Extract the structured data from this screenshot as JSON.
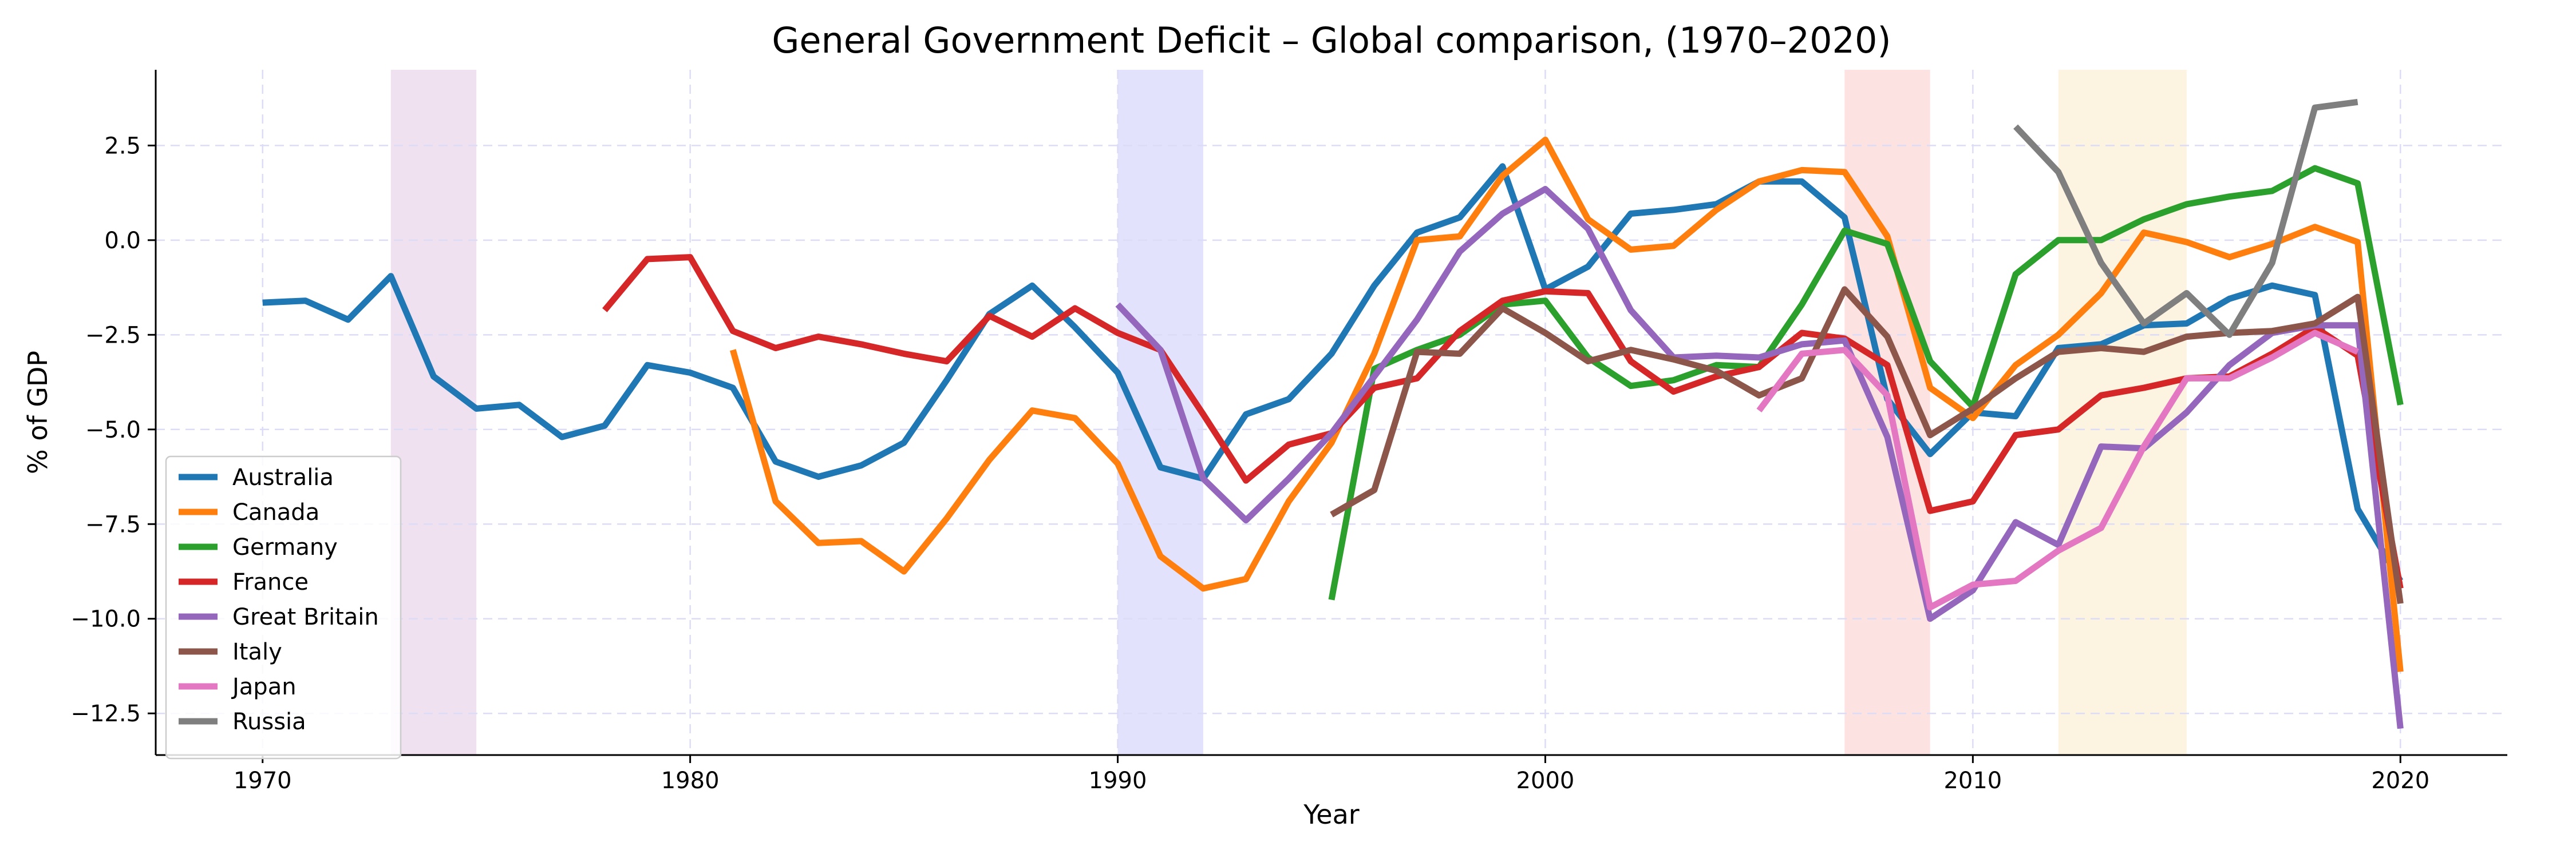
{
  "chart_data": {
    "type": "line",
    "title": "General Government Deficit – Global comparison, (1970–2020)",
    "xlabel": "Year",
    "ylabel": "% of GDP",
    "xlim": [
      1967.5,
      2022.5
    ],
    "ylim": [
      -13.6,
      4.5
    ],
    "xticks": [
      1970,
      1980,
      1990,
      2000,
      2010,
      2020
    ],
    "yticks": [
      2.5,
      0.0,
      -2.5,
      -5.0,
      -7.5,
      -10.0,
      -12.5
    ],
    "ytick_labels": [
      "2.5",
      "0.0",
      "−2.5",
      "−5.0",
      "−7.5",
      "−10.0",
      "−12.5"
    ],
    "grid": true,
    "legend_position": "lower-left",
    "shaded_periods": [
      {
        "start": 1973,
        "end": 1975,
        "color": "#efe1f0"
      },
      {
        "start": 1990,
        "end": 1992,
        "color": "#e2e2fc"
      },
      {
        "start": 2007,
        "end": 2009,
        "color": "#fde2e2"
      },
      {
        "start": 2012,
        "end": 2015,
        "color": "#fdf3e1"
      }
    ],
    "series": [
      {
        "name": "Australia",
        "color": "#1f77b4",
        "x": [
          1970,
          1971,
          1972,
          1973,
          1974,
          1975,
          1976,
          1977,
          1978,
          1979,
          1980,
          1981,
          1982,
          1983,
          1984,
          1985,
          1986,
          1987,
          1988,
          1989,
          1990,
          1991,
          1992,
          1993,
          1994,
          1995,
          1996,
          1997,
          1998,
          1999,
          2000,
          2001,
          2002,
          2003,
          2004,
          2005,
          2006,
          2007,
          2008,
          2009,
          2010,
          2011,
          2012,
          2013,
          2014,
          2015,
          2016,
          2017,
          2018,
          2019,
          2020
        ],
        "y": [
          -1.65,
          -1.6,
          -2.1,
          -0.95,
          -3.6,
          -4.45,
          -4.35,
          -5.2,
          -4.9,
          -3.3,
          -3.5,
          -3.9,
          -5.85,
          -6.25,
          -5.95,
          -5.35,
          -3.7,
          -1.95,
          -1.2,
          -2.3,
          -3.5,
          -6.0,
          -6.3,
          -4.6,
          -4.2,
          -3.0,
          -1.2,
          0.2,
          0.6,
          1.95,
          -1.3,
          -0.7,
          0.7,
          0.8,
          0.95,
          1.55,
          1.55,
          0.6,
          -4.2,
          -5.65,
          -4.55,
          -4.65,
          -2.85,
          -2.75,
          -2.25,
          -2.2,
          -1.55,
          -1.2,
          -1.45,
          -7.1,
          -9.0
        ]
      },
      {
        "name": "Canada",
        "color": "#ff7f0e",
        "x": [
          1981,
          1982,
          1983,
          1984,
          1985,
          1986,
          1987,
          1988,
          1989,
          1990,
          1991,
          1992,
          1993,
          1994,
          1995,
          1996,
          1997,
          1998,
          1999,
          2000,
          2001,
          2002,
          2003,
          2004,
          2005,
          2006,
          2007,
          2008,
          2009,
          2010,
          2011,
          2012,
          2013,
          2014,
          2015,
          2016,
          2017,
          2018,
          2019,
          2020
        ],
        "y": [
          -2.9,
          -6.9,
          -8.0,
          -7.95,
          -8.75,
          -7.35,
          -5.8,
          -4.5,
          -4.7,
          -5.9,
          -8.35,
          -9.2,
          -8.95,
          -6.9,
          -5.35,
          -3.0,
          0.0,
          0.1,
          1.7,
          2.65,
          0.55,
          -0.25,
          -0.15,
          0.8,
          1.55,
          1.85,
          1.8,
          0.1,
          -3.9,
          -4.7,
          -3.3,
          -2.5,
          -1.4,
          0.2,
          -0.05,
          -0.45,
          -0.1,
          0.35,
          -0.05,
          -11.4
        ]
      },
      {
        "name": "Germany",
        "color": "#2ca02c",
        "x": [
          1995,
          1996,
          1997,
          1998,
          1999,
          2000,
          2001,
          2002,
          2003,
          2004,
          2005,
          2006,
          2007,
          2008,
          2009,
          2010,
          2011,
          2012,
          2013,
          2014,
          2015,
          2016,
          2017,
          2018,
          2019,
          2020
        ],
        "y": [
          -9.5,
          -3.4,
          -2.9,
          -2.5,
          -1.7,
          -1.6,
          -3.1,
          -3.85,
          -3.7,
          -3.3,
          -3.35,
          -1.7,
          0.25,
          -0.1,
          -3.2,
          -4.4,
          -0.9,
          0.0,
          0.0,
          0.55,
          0.95,
          1.15,
          1.3,
          1.9,
          1.5,
          -4.35
        ]
      },
      {
        "name": "France",
        "color": "#d62728",
        "x": [
          1978,
          1979,
          1980,
          1981,
          1982,
          1983,
          1984,
          1985,
          1986,
          1987,
          1988,
          1989,
          1990,
          1991,
          1992,
          1993,
          1994,
          1995,
          1996,
          1997,
          1998,
          1999,
          2000,
          2001,
          2002,
          2003,
          2004,
          2005,
          2006,
          2007,
          2008,
          2009,
          2010,
          2011,
          2012,
          2013,
          2014,
          2015,
          2016,
          2017,
          2018,
          2019,
          2020
        ],
        "y": [
          -1.85,
          -0.5,
          -0.45,
          -2.4,
          -2.85,
          -2.55,
          -2.75,
          -3.0,
          -3.2,
          -2.0,
          -2.55,
          -1.8,
          -2.45,
          -2.9,
          -4.6,
          -6.35,
          -5.4,
          -5.1,
          -3.9,
          -3.65,
          -2.4,
          -1.6,
          -1.35,
          -1.4,
          -3.2,
          -4.0,
          -3.6,
          -3.35,
          -2.45,
          -2.6,
          -3.3,
          -7.15,
          -6.9,
          -5.15,
          -5.0,
          -4.1,
          -3.9,
          -3.65,
          -3.6,
          -3.0,
          -2.3,
          -3.05,
          -9.2
        ]
      },
      {
        "name": "Great Britain",
        "color": "#9467bd",
        "x": [
          1990,
          1991,
          1992,
          1993,
          1994,
          1995,
          1996,
          1997,
          1998,
          1999,
          2000,
          2001,
          2002,
          2003,
          2004,
          2005,
          2006,
          2007,
          2008,
          2009,
          2010,
          2011,
          2012,
          2013,
          2014,
          2015,
          2016,
          2017,
          2018,
          2019,
          2020
        ],
        "y": [
          -1.7,
          -2.9,
          -6.3,
          -7.4,
          -6.3,
          -5.1,
          -3.6,
          -2.1,
          -0.3,
          0.7,
          1.35,
          0.3,
          -1.85,
          -3.1,
          -3.05,
          -3.1,
          -2.75,
          -2.65,
          -5.2,
          -10.0,
          -9.25,
          -7.45,
          -8.05,
          -5.45,
          -5.5,
          -4.55,
          -3.3,
          -2.45,
          -2.25,
          -2.25,
          -12.9
        ]
      },
      {
        "name": "Italy",
        "color": "#8c564b",
        "x": [
          1995,
          1996,
          1997,
          1998,
          1999,
          2000,
          2001,
          2002,
          2003,
          2004,
          2005,
          2006,
          2007,
          2008,
          2009,
          2010,
          2011,
          2012,
          2013,
          2014,
          2015,
          2016,
          2017,
          2018,
          2019,
          2020
        ],
        "y": [
          -7.25,
          -6.6,
          -2.95,
          -3.0,
          -1.8,
          -2.45,
          -3.2,
          -2.9,
          -3.15,
          -3.45,
          -4.1,
          -3.65,
          -1.3,
          -2.55,
          -5.15,
          -4.45,
          -3.65,
          -2.95,
          -2.85,
          -2.95,
          -2.55,
          -2.45,
          -2.4,
          -2.2,
          -1.5,
          -9.6
        ]
      },
      {
        "name": "Japan",
        "color": "#e377c2",
        "x": [
          2005,
          2006,
          2007,
          2008,
          2009,
          2010,
          2011,
          2012,
          2013,
          2014,
          2015,
          2016,
          2017,
          2018,
          2019
        ],
        "y": [
          -4.5,
          -3.0,
          -2.9,
          -4.1,
          -9.7,
          -9.1,
          -9.0,
          -8.2,
          -7.6,
          -5.45,
          -3.65,
          -3.65,
          -3.1,
          -2.45,
          -2.95
        ]
      },
      {
        "name": "Russia",
        "color": "#7f7f7f",
        "x": [
          2011,
          2012,
          2013,
          2014,
          2015,
          2016,
          2017,
          2018,
          2019
        ],
        "y": [
          3.0,
          1.8,
          -0.6,
          -2.2,
          -1.4,
          -2.5,
          -0.6,
          3.5,
          3.65
        ]
      }
    ]
  }
}
